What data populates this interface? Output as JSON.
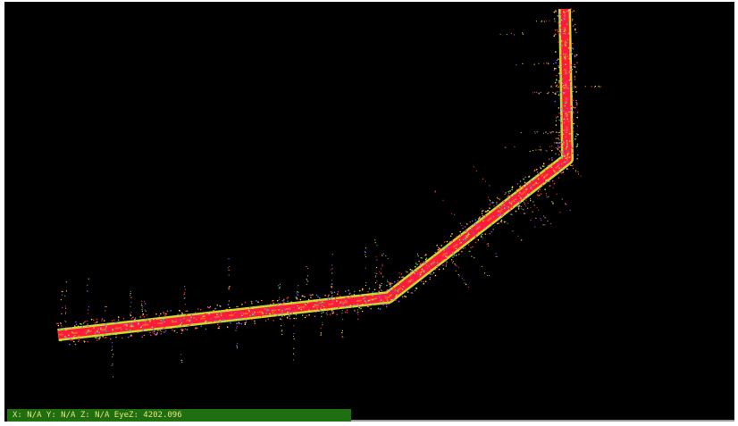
{
  "status_bar": {
    "text": "X: N/A Y: N/A Z: N/A EyeZ: 4202.096"
  }
}
